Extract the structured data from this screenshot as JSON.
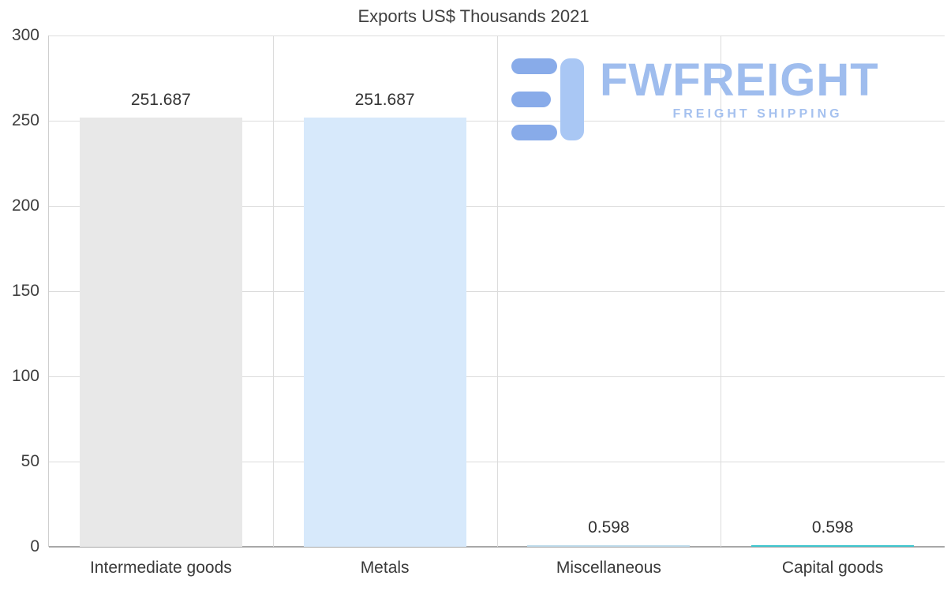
{
  "title": "Exports US$ Thousands 2021",
  "watermark": {
    "brand": "FWFREIGHT",
    "tagline": "FREIGHT SHIPPING",
    "brand_color": "#9fbdee",
    "mark_color_dark": "#88abe9",
    "mark_color_light": "#a9c7f4"
  },
  "chart_data": {
    "type": "bar",
    "title": "Exports US$ Thousands 2021",
    "categories": [
      "Intermediate goods",
      "Metals",
      "Miscellaneous",
      "Capital goods"
    ],
    "values": [
      251.687,
      251.687,
      0.598,
      0.598
    ],
    "value_labels": [
      "251.687",
      "251.687",
      "0.598",
      "0.598"
    ],
    "bar_colors": [
      "#e8e8e8",
      "#d7e9fb",
      "#bfdcec",
      "#3fc6ce"
    ],
    "xlabel": "",
    "ylabel": "",
    "ylim": [
      0,
      300
    ],
    "y_ticks": [
      0,
      50,
      100,
      150,
      200,
      250,
      300
    ],
    "grid": "on",
    "legend": "none"
  }
}
